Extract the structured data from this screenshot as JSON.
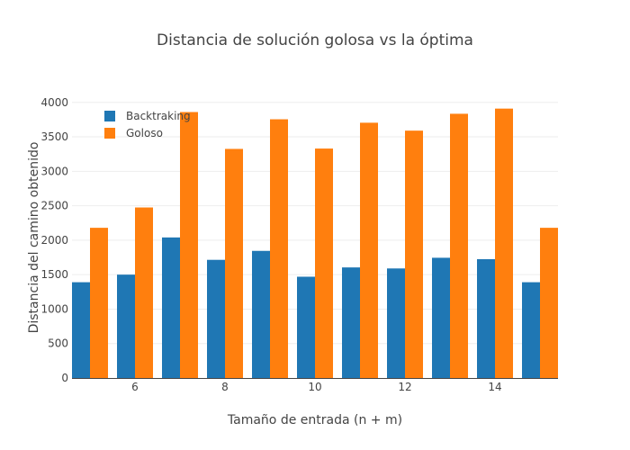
{
  "chart_data": {
    "type": "bar",
    "title": "Distancia de solución golosa vs la óptima",
    "xlabel": "Tamaño de entrada (n + m)",
    "ylabel": "Distancia del camino obtenido",
    "x": [
      5,
      6,
      7,
      8,
      9,
      10,
      11,
      12,
      13,
      14,
      15
    ],
    "xticks": [
      "6",
      "8",
      "10",
      "12",
      "14"
    ],
    "xtick_values": [
      6,
      8,
      10,
      12,
      14
    ],
    "yticks": [
      "0",
      "500",
      "1000",
      "1500",
      "2000",
      "2500",
      "3000",
      "3500",
      "4000"
    ],
    "ylim": [
      0,
      4180
    ],
    "xlim": [
      4.6,
      15.4
    ],
    "grid": true,
    "legend_position": "top-left",
    "series": [
      {
        "name": "Backtraking",
        "color": "#1f77b4",
        "values": [
          1390,
          1500,
          2040,
          1715,
          1845,
          1470,
          1605,
          1590,
          1745,
          1725,
          1390
        ]
      },
      {
        "name": "Goloso",
        "color": "#ff7f0e",
        "values": [
          2180,
          2475,
          3860,
          3325,
          3755,
          3330,
          3705,
          3590,
          3835,
          3910,
          2180
        ]
      }
    ]
  }
}
